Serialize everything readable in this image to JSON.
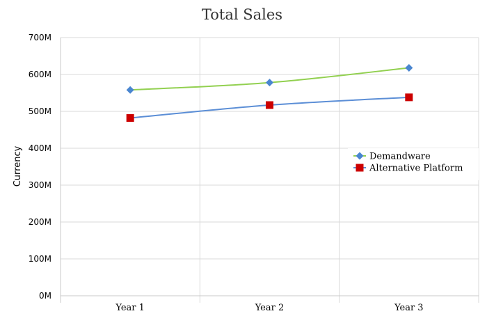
{
  "chart_data": {
    "type": "line",
    "title": "Total Sales",
    "xlabel": "",
    "ylabel": "Currency",
    "categories": [
      "Year 1",
      "Year 2",
      "Year 3"
    ],
    "ylim": [
      0,
      700
    ],
    "yticks": [
      {
        "value": 0,
        "label": "0M"
      },
      {
        "value": 100,
        "label": "100M"
      },
      {
        "value": 200,
        "label": "200M"
      },
      {
        "value": 300,
        "label": "300M"
      },
      {
        "value": 400,
        "label": "400M"
      },
      {
        "value": 500,
        "label": "500M"
      },
      {
        "value": 600,
        "label": "600M"
      },
      {
        "value": 700,
        "label": "700M"
      }
    ],
    "grid": true,
    "legend_position": "right",
    "series": [
      {
        "name": "Demandware",
        "values": [
          558,
          578,
          618
        ],
        "line_color": "#92d050",
        "marker_color": "#4a86d0",
        "marker": "diamond"
      },
      {
        "name": "Alternative Platform",
        "values": [
          482,
          517,
          538
        ],
        "line_color": "#5b8ed6",
        "marker_color": "#cc0000",
        "marker": "square"
      }
    ]
  }
}
